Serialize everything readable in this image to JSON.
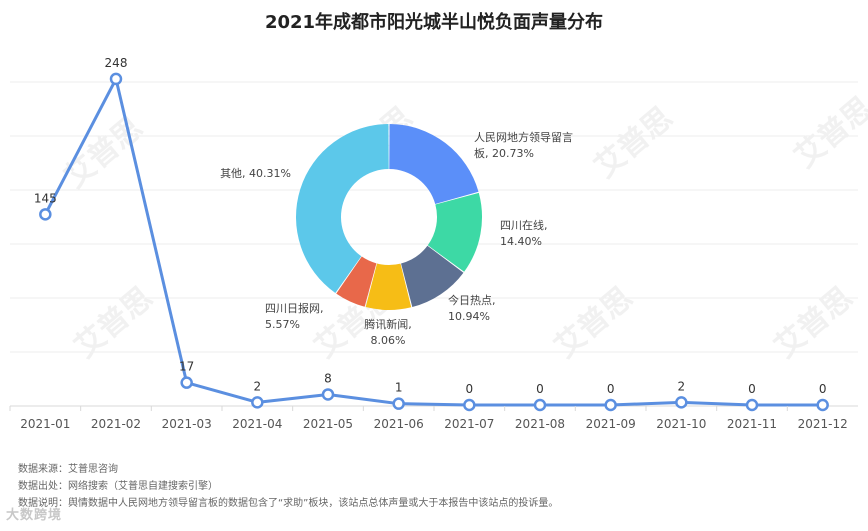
{
  "title": "2021年成都市阳光城半山悦负面声量分布",
  "chart_data": [
    {
      "type": "line",
      "categories": [
        "2021-01",
        "2021-02",
        "2021-03",
        "2021-04",
        "2021-05",
        "2021-06",
        "2021-07",
        "2021-08",
        "2021-09",
        "2021-10",
        "2021-11",
        "2021-12"
      ],
      "values": [
        145,
        248,
        17,
        2,
        8,
        1,
        0,
        0,
        0,
        2,
        0,
        0
      ],
      "ylim": [
        0,
        270
      ],
      "grid": true,
      "color": "#5B8FE0"
    },
    {
      "type": "pie",
      "donut": true,
      "slices": [
        {
          "label": "人民网地方领导留言板",
          "label_lines": [
            "人民网地方领导留言",
            "板, 20.73%"
          ],
          "value": 20.73,
          "color": "#5B8FF9"
        },
        {
          "label": "四川在线",
          "label_lines": [
            "四川在线,",
            "14.40%"
          ],
          "value": 14.4,
          "color": "#3DD9A5"
        },
        {
          "label": "今日热点",
          "label_lines": [
            "今日热点,",
            "10.94%"
          ],
          "value": 10.94,
          "color": "#5D7092"
        },
        {
          "label": "腾讯新闻",
          "label_lines": [
            "腾讯新闻,",
            "8.06%"
          ],
          "value": 8.06,
          "color": "#F6BD16"
        },
        {
          "label": "四川日报网",
          "label_lines": [
            "四川日报网,",
            "5.57%"
          ],
          "value": 5.57,
          "color": "#E8684A"
        },
        {
          "label": "其他",
          "label_lines": [
            "其他, 40.31%"
          ],
          "value": 40.31,
          "color": "#5CC8EA"
        }
      ]
    }
  ],
  "footer": {
    "source": "数据来源：艾普思咨询",
    "origin": "数据出处：网络搜索（艾普思自建搜索引擎）",
    "note": "数据说明：舆情数据中人民网地方领导留言板的数据包含了“求助”板块，该站点总体声量或大于本报告中该站点的投诉量。"
  },
  "watermark": "艾普思",
  "brand": "大数跨境"
}
